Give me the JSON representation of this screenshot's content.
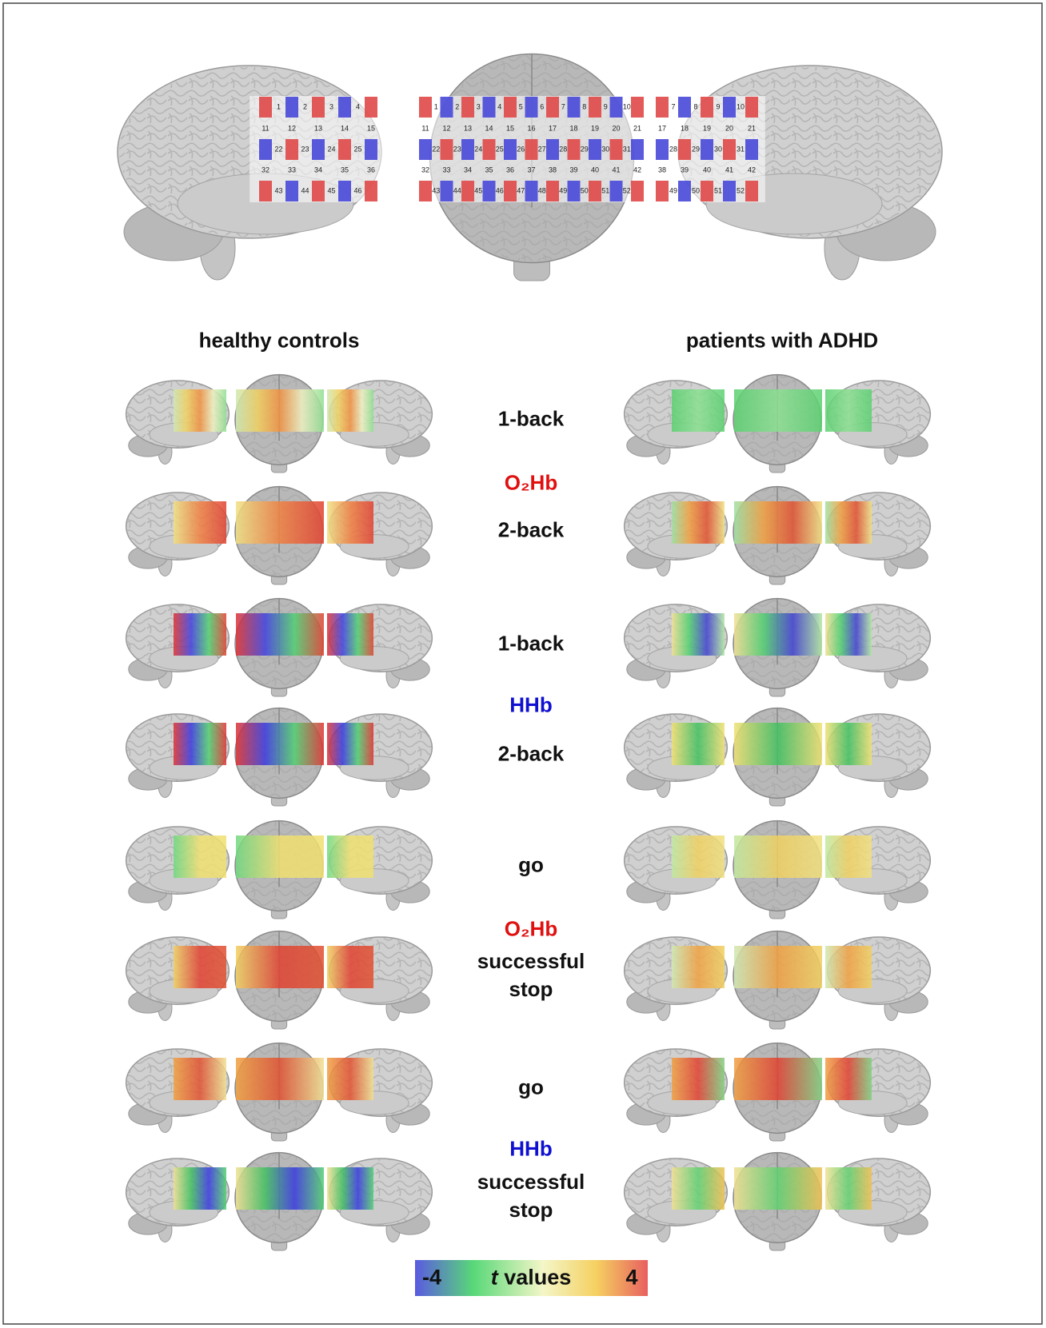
{
  "schematic": {
    "channels": [
      1,
      2,
      3,
      4,
      5,
      6,
      7,
      8,
      9,
      10,
      11,
      12,
      13,
      14,
      15,
      16,
      17,
      18,
      19,
      20,
      21,
      22,
      23,
      24,
      25,
      26,
      27,
      28,
      29,
      30,
      31,
      32,
      33,
      34,
      35,
      36,
      37,
      38,
      39,
      40,
      41,
      42,
      43,
      44,
      45,
      46,
      47,
      48,
      49,
      50,
      51,
      52
    ]
  },
  "columns": [
    "healthy controls",
    "patients with ADHD"
  ],
  "conditions": [
    {
      "signal": "O₂Hb",
      "color": "#e01010",
      "tasks": [
        "1-back",
        "2-back"
      ]
    },
    {
      "signal": "HHb",
      "color": "#1010d0",
      "tasks": [
        "1-back",
        "2-back"
      ]
    },
    {
      "signal": "O₂Hb",
      "color": "#e01010",
      "tasks": [
        "go",
        "successful stop"
      ]
    },
    {
      "signal": "HHb",
      "color": "#1010d0",
      "tasks": [
        "go",
        "successful stop"
      ]
    }
  ],
  "colorbar": {
    "min": -4,
    "label": "t values",
    "max": 4
  }
}
